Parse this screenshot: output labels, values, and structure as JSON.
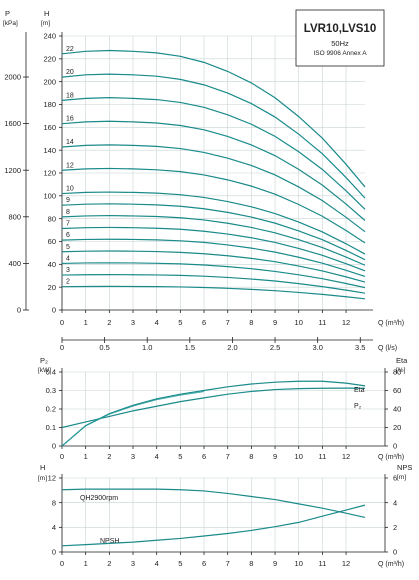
{
  "chart_data": [
    {
      "type": "line",
      "title": "LVR10,LVS10",
      "subtitle_1": "50Hz",
      "subtitle_2": "ISO 9906 Annex A",
      "x_axis": {
        "label": "Q (m³/h)",
        "min": 0,
        "max": 12,
        "ticks": [
          0,
          1,
          2,
          3,
          4,
          5,
          6,
          7,
          8,
          9,
          10,
          11,
          12
        ]
      },
      "x2_axis": {
        "label": "Q (l/s)",
        "ticks": [
          "0",
          "0.5",
          "1.0",
          "1.5",
          "2.0",
          "2.5",
          "3.0",
          "3.5"
        ],
        "tick_values": [
          0,
          0.5,
          1.0,
          1.5,
          2.0,
          2.5,
          3.0,
          3.5
        ]
      },
      "y_axis": {
        "label": "H",
        "unit": "[m]",
        "min": 0,
        "max": 240,
        "ticks": [
          0,
          20,
          40,
          60,
          80,
          100,
          120,
          140,
          160,
          180,
          200,
          220,
          240
        ]
      },
      "y2_axis": {
        "label": "P",
        "unit": "[kPa]",
        "ticks": [
          0,
          400,
          800,
          1200,
          1600,
          2000
        ]
      },
      "grid": true,
      "series": [
        {
          "name": "2",
          "x": [
            0,
            1,
            2,
            3,
            4,
            5,
            6,
            7,
            8,
            9,
            10,
            11,
            12,
            12.8
          ],
          "y": [
            20.4,
            20.6,
            20.7,
            20.6,
            20.5,
            20.2,
            19.7,
            19.0,
            18.1,
            16.9,
            15.4,
            13.7,
            11.6,
            9.8
          ]
        },
        {
          "name": "3",
          "x": [
            0,
            1,
            2,
            3,
            4,
            5,
            6,
            7,
            8,
            9,
            10,
            11,
            12,
            12.8
          ],
          "y": [
            30.6,
            30.9,
            31.0,
            30.9,
            30.7,
            30.3,
            29.6,
            28.5,
            27.1,
            25.4,
            23.1,
            20.5,
            17.4,
            14.7
          ]
        },
        {
          "name": "4",
          "x": [
            0,
            1,
            2,
            3,
            4,
            5,
            6,
            7,
            8,
            9,
            10,
            11,
            12,
            12.8
          ],
          "y": [
            40.8,
            41.2,
            41.3,
            41.2,
            40.9,
            40.4,
            39.4,
            38.0,
            36.2,
            33.8,
            30.8,
            27.4,
            23.2,
            19.6
          ]
        },
        {
          "name": "5",
          "x": [
            0,
            1,
            2,
            3,
            4,
            5,
            6,
            7,
            8,
            9,
            10,
            11,
            12,
            12.8
          ],
          "y": [
            51.0,
            51.5,
            51.7,
            51.5,
            51.2,
            50.5,
            49.3,
            47.5,
            45.2,
            42.3,
            38.5,
            34.2,
            29.0,
            24.5
          ]
        },
        {
          "name": "6",
          "x": [
            0,
            1,
            2,
            3,
            4,
            5,
            6,
            7,
            8,
            9,
            10,
            11,
            12,
            12.8
          ],
          "y": [
            61.2,
            61.8,
            62.0,
            61.8,
            61.4,
            60.6,
            59.2,
            57.0,
            54.2,
            50.7,
            46.2,
            41.0,
            34.8,
            29.4
          ]
        },
        {
          "name": "7",
          "x": [
            0,
            1,
            2,
            3,
            4,
            5,
            6,
            7,
            8,
            9,
            10,
            11,
            12,
            12.8
          ],
          "y": [
            71.4,
            72.1,
            72.3,
            72.1,
            71.6,
            70.7,
            69.0,
            66.5,
            63.3,
            59.2,
            53.9,
            47.9,
            40.6,
            34.3
          ]
        },
        {
          "name": "8",
          "x": [
            0,
            1,
            2,
            3,
            4,
            5,
            6,
            7,
            8,
            9,
            10,
            11,
            12,
            12.8
          ],
          "y": [
            81.6,
            82.4,
            82.7,
            82.4,
            81.9,
            80.8,
            78.9,
            76.0,
            72.3,
            67.6,
            61.6,
            54.7,
            46.4,
            39.2
          ]
        },
        {
          "name": "9",
          "x": [
            0,
            1,
            2,
            3,
            4,
            5,
            6,
            7,
            8,
            9,
            10,
            11,
            12,
            12.8
          ],
          "y": [
            91.8,
            92.7,
            93.0,
            92.7,
            92.1,
            90.9,
            88.7,
            85.5,
            81.4,
            76.1,
            69.3,
            61.6,
            52.2,
            44.1
          ]
        },
        {
          "name": "10",
          "x": [
            0,
            1,
            2,
            3,
            4,
            5,
            6,
            7,
            8,
            9,
            10,
            11,
            12,
            12.8
          ],
          "y": [
            102.0,
            103.0,
            103.3,
            103.0,
            102.4,
            101.0,
            98.6,
            95.0,
            90.4,
            84.5,
            77.0,
            68.4,
            58.0,
            49.0
          ]
        },
        {
          "name": "12",
          "x": [
            0,
            1,
            2,
            3,
            4,
            5,
            6,
            7,
            8,
            9,
            10,
            11,
            12,
            12.8
          ],
          "y": [
            122.4,
            123.6,
            124.0,
            123.6,
            122.8,
            121.2,
            118.3,
            114.0,
            108.5,
            101.4,
            92.4,
            82.1,
            69.6,
            58.8
          ]
        },
        {
          "name": "14",
          "x": [
            0,
            1,
            2,
            3,
            4,
            5,
            6,
            7,
            8,
            9,
            10,
            11,
            12,
            12.8
          ],
          "y": [
            142.8,
            144.2,
            144.6,
            144.2,
            143.3,
            141.4,
            138.0,
            133.0,
            126.6,
            118.3,
            107.8,
            95.8,
            81.2,
            68.6
          ]
        },
        {
          "name": "16",
          "x": [
            0,
            1,
            2,
            3,
            4,
            5,
            6,
            7,
            8,
            9,
            10,
            11,
            12,
            12.8
          ],
          "y": [
            163.2,
            164.8,
            165.3,
            164.8,
            163.8,
            161.6,
            157.8,
            152.0,
            144.6,
            135.2,
            123.2,
            109.4,
            92.8,
            78.4
          ]
        },
        {
          "name": "18",
          "x": [
            0,
            1,
            2,
            3,
            4,
            5,
            6,
            7,
            8,
            9,
            10,
            11,
            12,
            12.8
          ],
          "y": [
            183.6,
            185.4,
            186.0,
            185.4,
            184.3,
            181.8,
            177.5,
            171.0,
            162.7,
            152.1,
            138.6,
            123.1,
            104.4,
            88.2
          ]
        },
        {
          "name": "20",
          "x": [
            0,
            1,
            2,
            3,
            4,
            5,
            6,
            7,
            8,
            9,
            10,
            11,
            12,
            12.8
          ],
          "y": [
            204.0,
            206.0,
            206.6,
            206.0,
            204.8,
            202.0,
            197.2,
            190.0,
            180.8,
            169.0,
            154.0,
            136.8,
            116.0,
            98.0
          ]
        },
        {
          "name": "22",
          "x": [
            0,
            1,
            2,
            3,
            4,
            5,
            6,
            7,
            8,
            9,
            10,
            11,
            12,
            12.8
          ],
          "y": [
            224.4,
            226.6,
            227.3,
            226.6,
            225.2,
            222.2,
            216.9,
            209.0,
            198.9,
            185.9,
            169.4,
            150.5,
            127.6,
            107.8
          ]
        }
      ]
    },
    {
      "type": "line",
      "x_axis": {
        "label": "Q (m³/h)",
        "min": 0,
        "max": 12,
        "ticks": [
          0,
          1,
          2,
          3,
          4,
          5,
          6,
          7,
          8,
          9,
          10,
          11,
          12
        ]
      },
      "y_axis": {
        "label": "P₂",
        "unit": "[kW]",
        "min": 0,
        "max": 0.4,
        "ticks": [
          "0",
          "0.1",
          "0.2",
          "0.3",
          "0.4"
        ],
        "tick_values": [
          0,
          0.1,
          0.2,
          0.3,
          0.4
        ]
      },
      "y2_axis": {
        "label": "Eta",
        "unit": "[%]",
        "min": 0,
        "max": 80,
        "ticks": [
          0,
          20,
          40,
          60,
          80
        ]
      },
      "grid": true,
      "series": [
        {
          "name": "Eta",
          "axis": "right",
          "x": [
            0,
            1,
            2,
            3,
            4,
            5,
            6,
            7,
            8,
            9,
            10,
            11,
            12,
            12.8
          ],
          "y": [
            0,
            22,
            35,
            44,
            51,
            56,
            60,
            64,
            67,
            69,
            70,
            70,
            68,
            65
          ]
        },
        {
          "name": "P₂",
          "axis": "left",
          "x": [
            0,
            1,
            2,
            3,
            4,
            5,
            6,
            7,
            8,
            9,
            10,
            11,
            12,
            12.8
          ],
          "y": [
            0.1,
            0.13,
            0.16,
            0.19,
            0.215,
            0.24,
            0.26,
            0.28,
            0.295,
            0.305,
            0.31,
            0.312,
            0.313,
            0.312
          ]
        }
      ]
    },
    {
      "type": "line",
      "x_axis": {
        "label": "Q (m³/h)",
        "min": 0,
        "max": 12,
        "ticks": [
          0,
          1,
          2,
          3,
          4,
          5,
          6,
          7,
          8,
          9,
          10,
          11,
          12
        ]
      },
      "y_axis": {
        "label": "H",
        "unit": "[m]",
        "min": 0,
        "max": 12,
        "ticks": [
          0,
          4,
          8,
          12
        ]
      },
      "y2_axis": {
        "label": "NPS",
        "unit": "[m]",
        "min": 0,
        "max": 6,
        "ticks": [
          0,
          2,
          4,
          6
        ]
      },
      "grid": true,
      "series": [
        {
          "name": "QH2900rpm",
          "axis": "left",
          "x": [
            0,
            1,
            2,
            3,
            4,
            5,
            6,
            7,
            8,
            9,
            10,
            11,
            12,
            12.8
          ],
          "y": [
            10.1,
            10.2,
            10.2,
            10.2,
            10.2,
            10.1,
            9.9,
            9.5,
            9.0,
            8.5,
            7.8,
            7.1,
            6.3,
            5.6
          ]
        },
        {
          "name": "NPSH",
          "axis": "right",
          "x": [
            0,
            1,
            2,
            3,
            4,
            5,
            6,
            7,
            8,
            9,
            10,
            11,
            12,
            12.8
          ],
          "y": [
            0.5,
            0.6,
            0.7,
            0.8,
            0.95,
            1.1,
            1.3,
            1.5,
            1.75,
            2.05,
            2.4,
            2.9,
            3.4,
            3.8
          ]
        }
      ]
    }
  ]
}
